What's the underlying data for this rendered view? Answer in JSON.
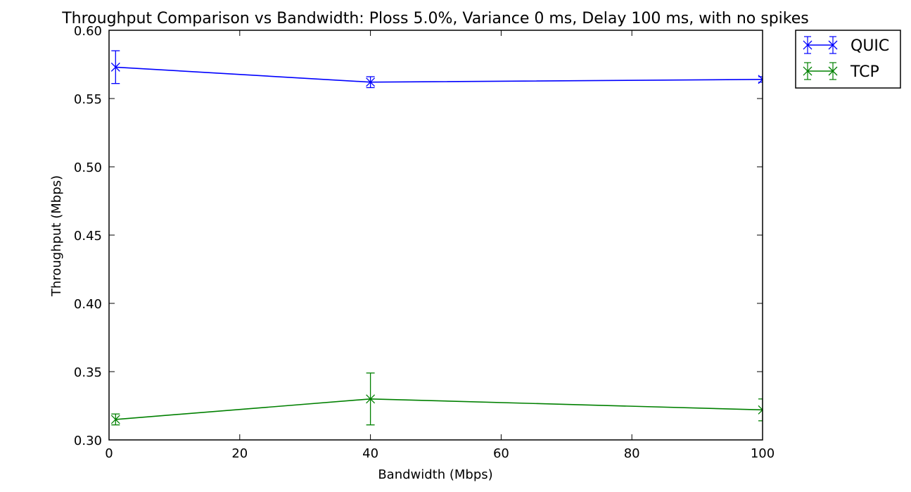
{
  "chart_data": {
    "type": "line",
    "title": "Throughput Comparison vs Bandwidth: Ploss 5.0%, Variance 0 ms, Delay 100 ms, with no spikes",
    "xlabel": "Bandwidth (Mbps)",
    "ylabel": "Throughput (Mbps)",
    "xlim": [
      0,
      100
    ],
    "ylim": [
      0.3,
      0.6
    ],
    "x_ticks": [
      "0",
      "20",
      "40",
      "60",
      "80",
      "100"
    ],
    "y_ticks": [
      "0.30",
      "0.35",
      "0.40",
      "0.45",
      "0.50",
      "0.55",
      "0.60"
    ],
    "grid": false,
    "legend_position": "outside-top-right",
    "series": [
      {
        "name": "QUIC",
        "color": "#0000ff",
        "marker": "x",
        "x": [
          1,
          40,
          100
        ],
        "y": [
          0.573,
          0.562,
          0.564
        ],
        "yerr": [
          0.012,
          0.004,
          0.002
        ]
      },
      {
        "name": "TCP",
        "color": "#008000",
        "marker": "x",
        "x": [
          1,
          40,
          100
        ],
        "y": [
          0.315,
          0.33,
          0.322
        ],
        "yerr": [
          0.004,
          0.019,
          0.008
        ]
      }
    ]
  }
}
